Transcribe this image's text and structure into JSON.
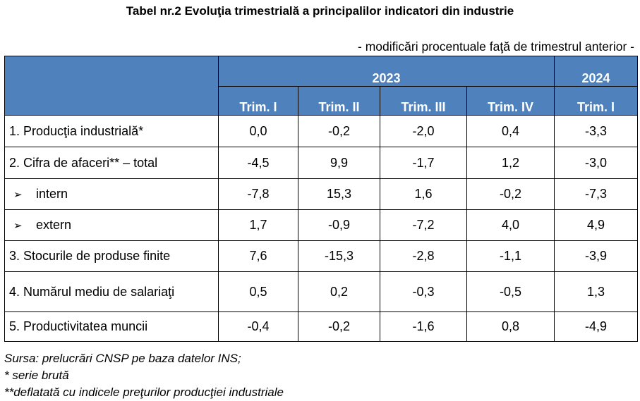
{
  "title": "Tabel nr.2  Evoluţia trimestrială a principalilor indicatori din industrie",
  "subtitle": "- modificări procentuale faţă de trimestrul anterior -",
  "header": {
    "years": [
      "2023",
      "2024"
    ],
    "quarters": [
      "Trim. I",
      "Trim. II",
      "Trim. III",
      "Trim. IV",
      "Trim. I"
    ]
  },
  "rows": [
    {
      "label": "1. Producţia industrială*",
      "values": [
        "0,0",
        "-0,2",
        "-2,0",
        "0,4",
        "-3,3"
      ]
    },
    {
      "label": "2. Cifra de afaceri**  – total",
      "values": [
        "-4,5",
        "9,9",
        "-1,7",
        "1,2",
        "-3,0"
      ]
    },
    {
      "label": "intern",
      "values": [
        "-7,8",
        "15,3",
        "1,6",
        "-0,2",
        "-7,3"
      ]
    },
    {
      "label": "extern",
      "values": [
        "1,7",
        "-0,9",
        "-7,2",
        "4,0",
        "4,9"
      ]
    },
    {
      "label": "3. Stocurile de produse finite",
      "values": [
        "7,6",
        "-15,3",
        "-2,8",
        "-1,1",
        "-3,9"
      ]
    },
    {
      "label": "4. Numărul mediu de salariaţi",
      "values": [
        "0,5",
        "0,2",
        "-0,3",
        "-0,5",
        "1,3"
      ]
    },
    {
      "label": "5. Productivitatea muncii",
      "values": [
        "-0,4",
        "-0,2",
        "-1,6",
        "0,8",
        "-4,9"
      ]
    }
  ],
  "arrow_glyph": "➢",
  "notes": [
    "Sursa: prelucrări CNSP pe baza datelor INS;",
    "* serie brută",
    "**deflatată cu indicele preţurilor producţiei industriale"
  ],
  "colors": {
    "header_bg": "#4f81bd",
    "header_text": "#ffffff"
  }
}
